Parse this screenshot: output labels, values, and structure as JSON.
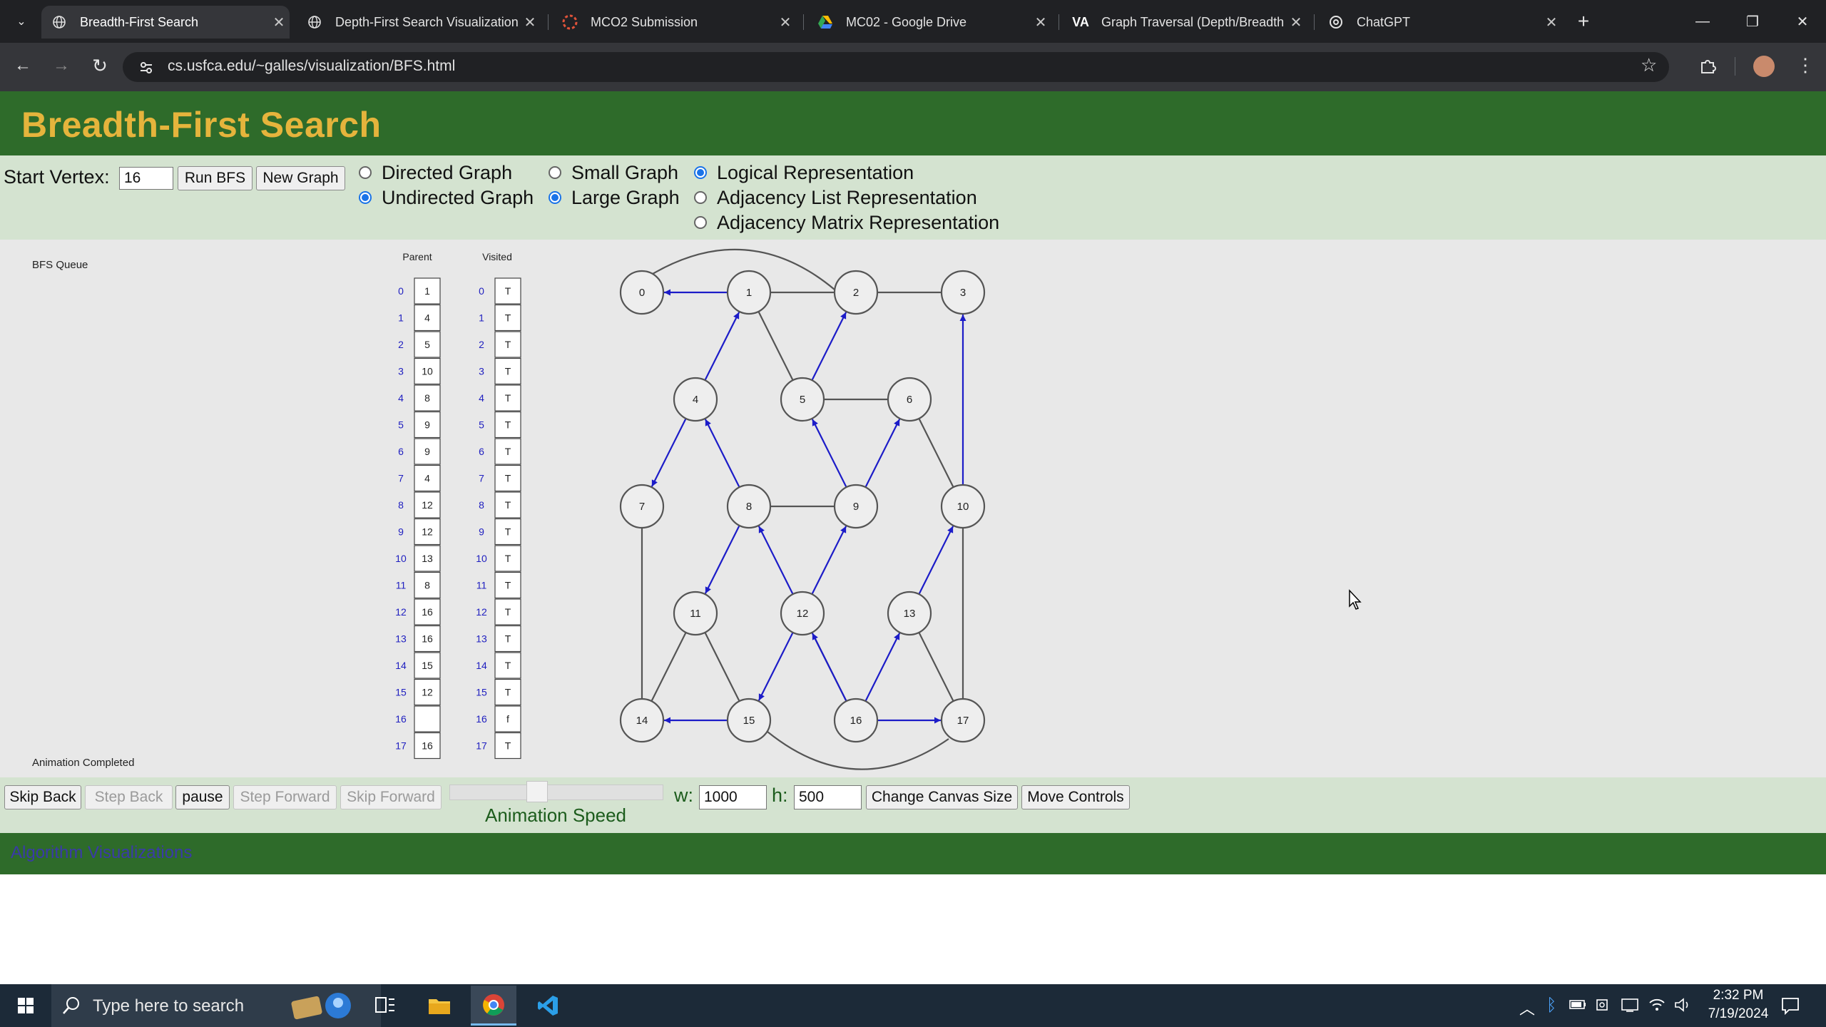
{
  "browser": {
    "tabs": [
      {
        "title": "Breadth-First Search",
        "icon": "globe-icon",
        "active": true
      },
      {
        "title": "Depth-First Search Visualization",
        "icon": "globe-icon",
        "active": false
      },
      {
        "title": "MCO2 Submission",
        "icon": "canvas-icon",
        "active": false
      },
      {
        "title": "MC02 - Google Drive",
        "icon": "google-drive-icon",
        "active": false
      },
      {
        "title": "Graph Traversal (Depth/Breadth",
        "icon": "visualgo-icon",
        "active": false
      },
      {
        "title": "ChatGPT",
        "icon": "chatgpt-icon",
        "active": false
      }
    ],
    "url": "cs.usfca.edu/~galles/visualization/BFS.html"
  },
  "page": {
    "title": "Breadth-First Search",
    "controls": {
      "start_vertex_label": "Start Vertex:",
      "start_vertex_value": "16",
      "run_button": "Run BFS",
      "new_graph_button": "New Graph",
      "directed_label": "Directed Graph",
      "undirected_label": "Undirected Graph",
      "small_label": "Small Graph",
      "large_label": "Large Graph",
      "logical_label": "Logical Representation",
      "adj_list_label": "Adjacency List Representation",
      "adj_matrix_label": "Adjacency Matrix Representation"
    },
    "canvas": {
      "bfs_queue_label": "BFS Queue",
      "parent_header": "Parent",
      "visited_header": "Visited",
      "status": "Animation Completed",
      "indices": [
        "0",
        "1",
        "2",
        "3",
        "4",
        "5",
        "6",
        "7",
        "8",
        "9",
        "10",
        "11",
        "12",
        "13",
        "14",
        "15",
        "16",
        "17"
      ],
      "parent": [
        "1",
        "4",
        "5",
        "10",
        "8",
        "9",
        "9",
        "4",
        "12",
        "12",
        "13",
        "8",
        "16",
        "16",
        "15",
        "12",
        "",
        "16"
      ],
      "visited": [
        "T",
        "T",
        "T",
        "T",
        "T",
        "T",
        "T",
        "T",
        "T",
        "T",
        "T",
        "T",
        "T",
        "T",
        "T",
        "T",
        "f",
        "T"
      ],
      "vertex_labels": [
        "0",
        "1",
        "2",
        "3",
        "4",
        "5",
        "6",
        "7",
        "8",
        "9",
        "10",
        "11",
        "12",
        "13",
        "14",
        "15",
        "16",
        "17"
      ]
    },
    "bottom": {
      "skip_back": "Skip Back",
      "step_back": "Step Back",
      "pause": "pause",
      "step_forward": "Step Forward",
      "skip_forward": "Skip Forward",
      "speed_label": "Animation Speed",
      "w_label": "w:",
      "w_value": "1000",
      "h_label": "h:",
      "h_value": "500",
      "change_canvas": "Change Canvas Size",
      "move_controls": "Move Controls"
    },
    "footer_link": "Algorithm Visualizations"
  },
  "taskbar": {
    "search_placeholder": "Type here to search",
    "time": "2:32 PM",
    "date": "7/19/2024"
  },
  "colors": {
    "header_green": "#2e6b2a",
    "title_gold": "#e5b43c",
    "controls_bg": "#d4e3d0",
    "tree_edge_blue": "#1c1cc8",
    "edge_gray": "#555555"
  }
}
